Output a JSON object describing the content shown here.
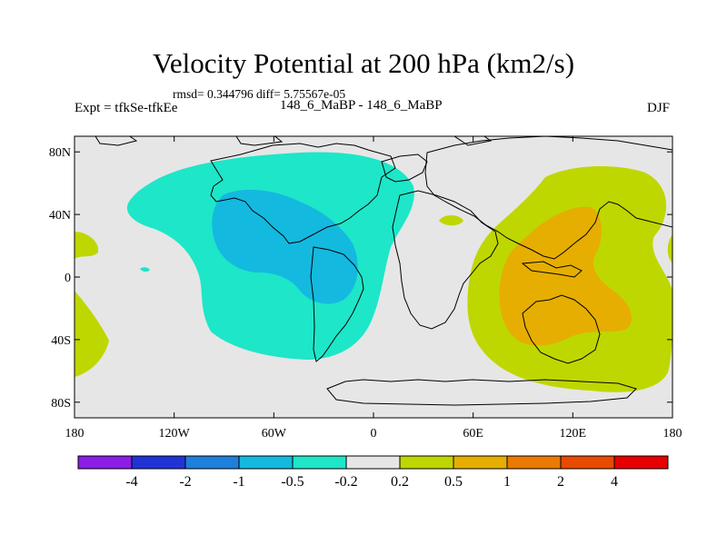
{
  "title": "Velocity Potential at 200 hPa (km2/s)",
  "stats": "rmsd= 0.344796  diff= 5.75567e-05",
  "left_label": "Expt = tfkSe-tfkEe",
  "center_label": "148_6_MaBP - 148_6_MaBP",
  "right_label": "DJF",
  "lat_ticks": [
    "80N",
    "40N",
    "0",
    "40S",
    "80S"
  ],
  "lon_ticks": [
    "180",
    "120W",
    "60W",
    "0",
    "60E",
    "120E",
    "180"
  ],
  "colorbar": {
    "labels": [
      "-4",
      "-2",
      "-1",
      "-0.5",
      "-0.2",
      "0.2",
      "0.5",
      "1",
      "2",
      "4"
    ],
    "colors": [
      "#8a1ee6",
      "#2233d6",
      "#1e7fdc",
      "#14b9e0",
      "#1ee6c8",
      "#e6e6e6",
      "#bed700",
      "#e6ae00",
      "#ea7a00",
      "#e84a00",
      "#e60000"
    ]
  },
  "field_colors": {
    "background": "#e6e6e6",
    "neg_0_2": "#1ee6c8",
    "neg_0_5": "#14b9e0",
    "neg_1": "#1ea0e0",
    "pos_0_2": "#bed700",
    "pos_0_5": "#e6ae00"
  }
}
